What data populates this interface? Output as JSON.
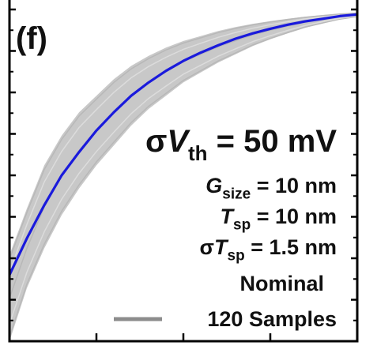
{
  "panel_label": "(f)",
  "chart_data": {
    "type": "line",
    "title": "",
    "xlabel": "",
    "ylabel": "",
    "grid": false,
    "xlim": [
      0,
      1
    ],
    "ylim": [
      0,
      1
    ],
    "x_ticks": [
      0.0,
      0.25,
      0.5,
      0.75,
      1.0
    ],
    "y_ticks": [
      0.0,
      0.125,
      0.25,
      0.375,
      0.5,
      0.625,
      0.75,
      0.875,
      1.0
    ],
    "legend": {
      "placement": "bottom-right"
    },
    "annotations": [
      {
        "id": "sigma-vth",
        "parts": [
          {
            "text": "σ",
            "italic": false,
            "sub": false
          },
          {
            "text": "V",
            "italic": true,
            "sub": false
          },
          {
            "text": "th",
            "italic": false,
            "sub": true
          },
          {
            "text": " = 50 mV",
            "italic": false,
            "sub": false
          }
        ]
      },
      {
        "id": "g-size",
        "parts": [
          {
            "text": "G",
            "italic": true,
            "sub": false
          },
          {
            "text": "size",
            "italic": false,
            "sub": true
          },
          {
            "text": " = 10 nm",
            "italic": false,
            "sub": false
          }
        ]
      },
      {
        "id": "t-sp",
        "parts": [
          {
            "text": "T",
            "italic": true,
            "sub": false
          },
          {
            "text": "sp",
            "italic": false,
            "sub": true
          },
          {
            "text": " = 10 nm",
            "italic": false,
            "sub": false
          }
        ]
      },
      {
        "id": "sigma-tsp",
        "parts": [
          {
            "text": "σ",
            "italic": false,
            "sub": false
          },
          {
            "text": "T",
            "italic": true,
            "sub": false
          },
          {
            "text": "sp",
            "italic": false,
            "sub": true
          },
          {
            "text": " = 1.5 nm",
            "italic": false,
            "sub": false
          }
        ]
      }
    ],
    "series": [
      {
        "name": "Nominal",
        "color": "#1a1adc",
        "x": [
          0.0,
          0.05,
          0.1,
          0.15,
          0.2,
          0.25,
          0.3,
          0.35,
          0.4,
          0.45,
          0.5,
          0.55,
          0.6,
          0.65,
          0.7,
          0.75,
          0.8,
          0.85,
          0.9,
          0.95,
          1.0
        ],
        "y": [
          0.2,
          0.31,
          0.41,
          0.5,
          0.57,
          0.635,
          0.69,
          0.74,
          0.78,
          0.815,
          0.845,
          0.87,
          0.892,
          0.912,
          0.928,
          0.942,
          0.954,
          0.964,
          0.972,
          0.98,
          0.985
        ]
      },
      {
        "name": "120 Samples",
        "color": "#8c8c8c",
        "band_color": "#c8c8c8",
        "x": [
          0.0,
          0.05,
          0.1,
          0.15,
          0.2,
          0.25,
          0.3,
          0.35,
          0.4,
          0.45,
          0.5,
          0.55,
          0.6,
          0.65,
          0.7,
          0.75,
          0.8,
          0.85,
          0.9,
          0.95,
          1.0
        ],
        "y_upper": [
          0.26,
          0.4,
          0.53,
          0.62,
          0.69,
          0.74,
          0.79,
          0.83,
          0.86,
          0.885,
          0.905,
          0.92,
          0.935,
          0.947,
          0.957,
          0.965,
          0.972,
          0.978,
          0.983,
          0.987,
          0.99
        ],
        "y_lower": [
          0.0,
          0.16,
          0.28,
          0.38,
          0.46,
          0.53,
          0.59,
          0.65,
          0.7,
          0.74,
          0.78,
          0.81,
          0.84,
          0.865,
          0.89,
          0.91,
          0.928,
          0.945,
          0.958,
          0.97,
          0.978
        ]
      }
    ]
  }
}
